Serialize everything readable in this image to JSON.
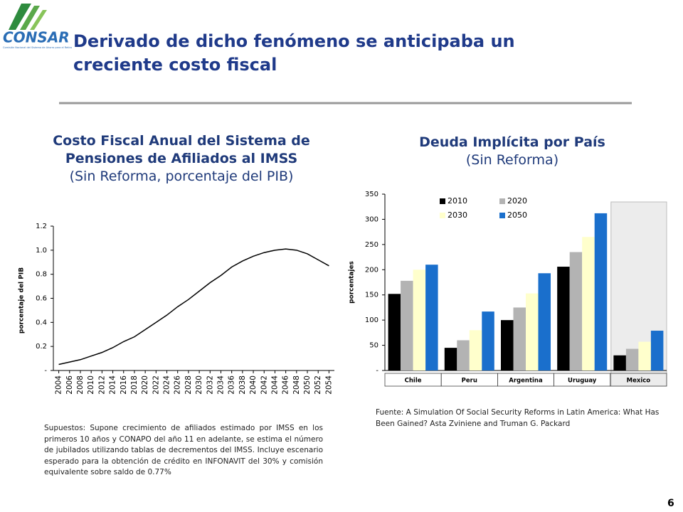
{
  "header": {
    "title": "Derivado de dicho fenómeno se anticipaba un creciente costo fiscal",
    "logo": "CONSAR",
    "logo_caption": "Comisión Nacional del Sistema de Ahorro para el Retiro"
  },
  "chart_data": [
    {
      "type": "line",
      "title": "Costo Fiscal Anual del Sistema de Pensiones de Afiliados al IMSS",
      "subtitle": "(Sin Reforma, porcentaje del PIB)",
      "y_label": "porcentaje del PIB",
      "x": [
        2004,
        2006,
        2008,
        2010,
        2012,
        2014,
        2016,
        2018,
        2020,
        2022,
        2024,
        2026,
        2028,
        2030,
        2032,
        2034,
        2036,
        2038,
        2040,
        2042,
        2044,
        2046,
        2048,
        2050,
        2052,
        2054
      ],
      "values": [
        0.05,
        0.07,
        0.09,
        0.12,
        0.15,
        0.19,
        0.24,
        0.28,
        0.34,
        0.4,
        0.46,
        0.53,
        0.59,
        0.66,
        0.73,
        0.79,
        0.86,
        0.91,
        0.95,
        0.98,
        1.0,
        1.01,
        1.0,
        0.97,
        0.92,
        0.87
      ],
      "color": "#000000",
      "xlim": [
        2003,
        2055
      ],
      "xticks": [
        2004,
        2006,
        2008,
        2010,
        2012,
        2014,
        2016,
        2018,
        2020,
        2022,
        2024,
        2026,
        2028,
        2030,
        2032,
        2034,
        2036,
        2038,
        2040,
        2042,
        2044,
        2046,
        2048,
        2050,
        2052,
        2054
      ],
      "ylim": [
        0,
        1.2
      ],
      "yticks": [
        {
          "value": 0,
          "label": "-"
        },
        0.2,
        0.4,
        0.6,
        0.8,
        {
          "value": 1,
          "label": "1.0"
        },
        1.2
      ],
      "note": "Supuestos: Supone crecimiento de afiliados estimado por IMSS en los primeros 10 años y CONAPO del año 11 en adelante, se estima el número de jubilados utilizando tablas de decrementos del IMSS. Incluye escenario esperado para la obtención de crédito en INFONAVIT del 30% y comisión equivalente sobre saldo de 0.77%"
    },
    {
      "type": "bar",
      "title": "Deuda Implícita por País",
      "subtitle": "(Sin Reforma)",
      "y_label": "porcentajes",
      "categories": [
        "Chile",
        "Peru",
        "Argentina",
        "Uruguay",
        "Mexico"
      ],
      "series": [
        {
          "name": "2010",
          "color": "#000000",
          "values": [
            152,
            45,
            100,
            206,
            30
          ]
        },
        {
          "name": "2020",
          "color": "#b3b3b3",
          "values": [
            178,
            60,
            125,
            235,
            43
          ]
        },
        {
          "name": "2030",
          "color": "#ffffcc",
          "values": [
            200,
            80,
            153,
            265,
            57
          ]
        },
        {
          "name": "2050",
          "color": "#1a6fcc",
          "values": [
            210,
            117,
            193,
            312,
            79
          ]
        }
      ],
      "ylim": [
        0,
        350
      ],
      "yticks": [
        {
          "value": 0,
          "label": "-"
        },
        50,
        100,
        150,
        200,
        250,
        300,
        350
      ],
      "source": "Fuente: A Simulation Of Social Security Reforms in Latin America: What Has Been Gained? Asta Zviniene and Truman G. Packard"
    }
  ],
  "page_number": "6"
}
